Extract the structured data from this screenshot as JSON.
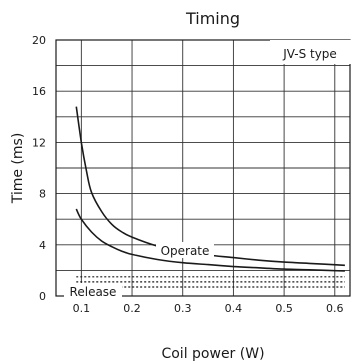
{
  "chart_data": {
    "type": "line",
    "title": "Timing",
    "xlabel": "Coil power (W)",
    "ylabel": "Time (ms)",
    "xlim": [
      0.05,
      0.63
    ],
    "ylim": [
      0,
      20
    ],
    "x_ticks": [
      0.1,
      0.2,
      0.3,
      0.4,
      0.5,
      0.6
    ],
    "x_tick_labels": [
      "0.1",
      "0.2",
      "0.3",
      "0.4",
      "0.5",
      "0.6"
    ],
    "y_ticks": [
      0,
      4,
      8,
      12,
      16,
      20
    ],
    "y_tick_labels": [
      "0",
      "4",
      "8",
      "12",
      "16",
      "20"
    ],
    "grid": true,
    "box_label": "JV-S type",
    "annotations": {
      "operate": "Operate",
      "release": "Release"
    },
    "series": [
      {
        "style": "solid",
        "x": [
          0.09,
          0.1,
          0.11,
          0.12,
          0.14,
          0.16,
          0.18,
          0.2,
          0.25,
          0.3,
          0.35,
          0.4,
          0.45,
          0.5,
          0.55,
          0.62
        ],
        "values": [
          14.8,
          12.0,
          9.8,
          8.1,
          6.6,
          5.6,
          5.0,
          4.6,
          3.9,
          3.5,
          3.2,
          3.0,
          2.8,
          2.65,
          2.55,
          2.4
        ]
      },
      {
        "style": "solid",
        "x": [
          0.09,
          0.1,
          0.12,
          0.14,
          0.16,
          0.18,
          0.2,
          0.25,
          0.3,
          0.35,
          0.4,
          0.45,
          0.5,
          0.55,
          0.62
        ],
        "values": [
          6.8,
          6.0,
          5.0,
          4.3,
          3.85,
          3.5,
          3.25,
          2.85,
          2.6,
          2.45,
          2.3,
          2.2,
          2.1,
          2.05,
          1.95
        ]
      },
      {
        "style": "dotted",
        "x": [
          0.09,
          0.62
        ],
        "values": [
          1.5,
          1.5
        ]
      },
      {
        "style": "dotted",
        "x": [
          0.09,
          0.62
        ],
        "values": [
          1.1,
          1.1
        ]
      },
      {
        "style": "dotted",
        "x": [
          0.09,
          0.62
        ],
        "values": [
          0.7,
          0.7
        ]
      }
    ],
    "colors": {
      "line": "#1a1a1a",
      "grid": "#333333",
      "frame": "#1a1a1a"
    }
  }
}
